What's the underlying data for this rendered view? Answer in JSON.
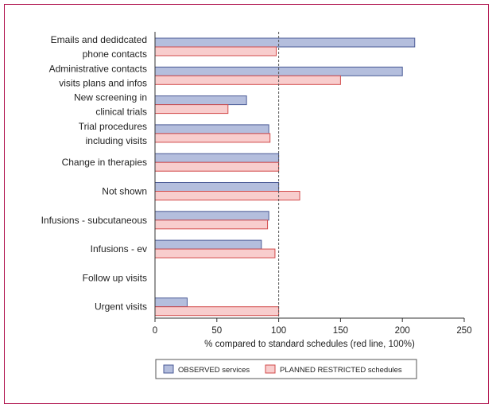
{
  "chart_data": {
    "type": "bar",
    "orientation": "horizontal",
    "categories": [
      [
        "Emails and dedidcated",
        "phone contacts"
      ],
      [
        "Administrative contacts",
        "visits plans and infos"
      ],
      [
        "New screening in",
        "clinical trials"
      ],
      [
        "Trial procedures",
        "including visits"
      ],
      [
        "Change in therapies"
      ],
      [
        "Not shown"
      ],
      [
        "Infusions - subcutaneous"
      ],
      [
        "Infusions - ev"
      ],
      [
        "Follow up visits"
      ],
      [
        "Urgent visits"
      ]
    ],
    "series": [
      {
        "name": "OBSERVED services",
        "color": "#b4bedd",
        "stroke": "#4a5a96",
        "values": [
          210,
          200,
          74,
          92,
          100,
          100,
          92,
          86,
          0,
          26
        ]
      },
      {
        "name": "PLANNED RESTRICTED schedules",
        "color": "#f8cdcd",
        "stroke": "#d24a4a",
        "values": [
          98,
          150,
          59,
          93,
          100,
          117,
          91,
          97,
          0,
          100
        ]
      }
    ],
    "xlabel": "% compared to standard schedules (red line, 100%)",
    "xlim": [
      0,
      250
    ],
    "xticks": [
      0,
      50,
      100,
      150,
      200,
      250
    ],
    "reference_line": 100,
    "grid": false,
    "legend_position": "bottom-center"
  }
}
